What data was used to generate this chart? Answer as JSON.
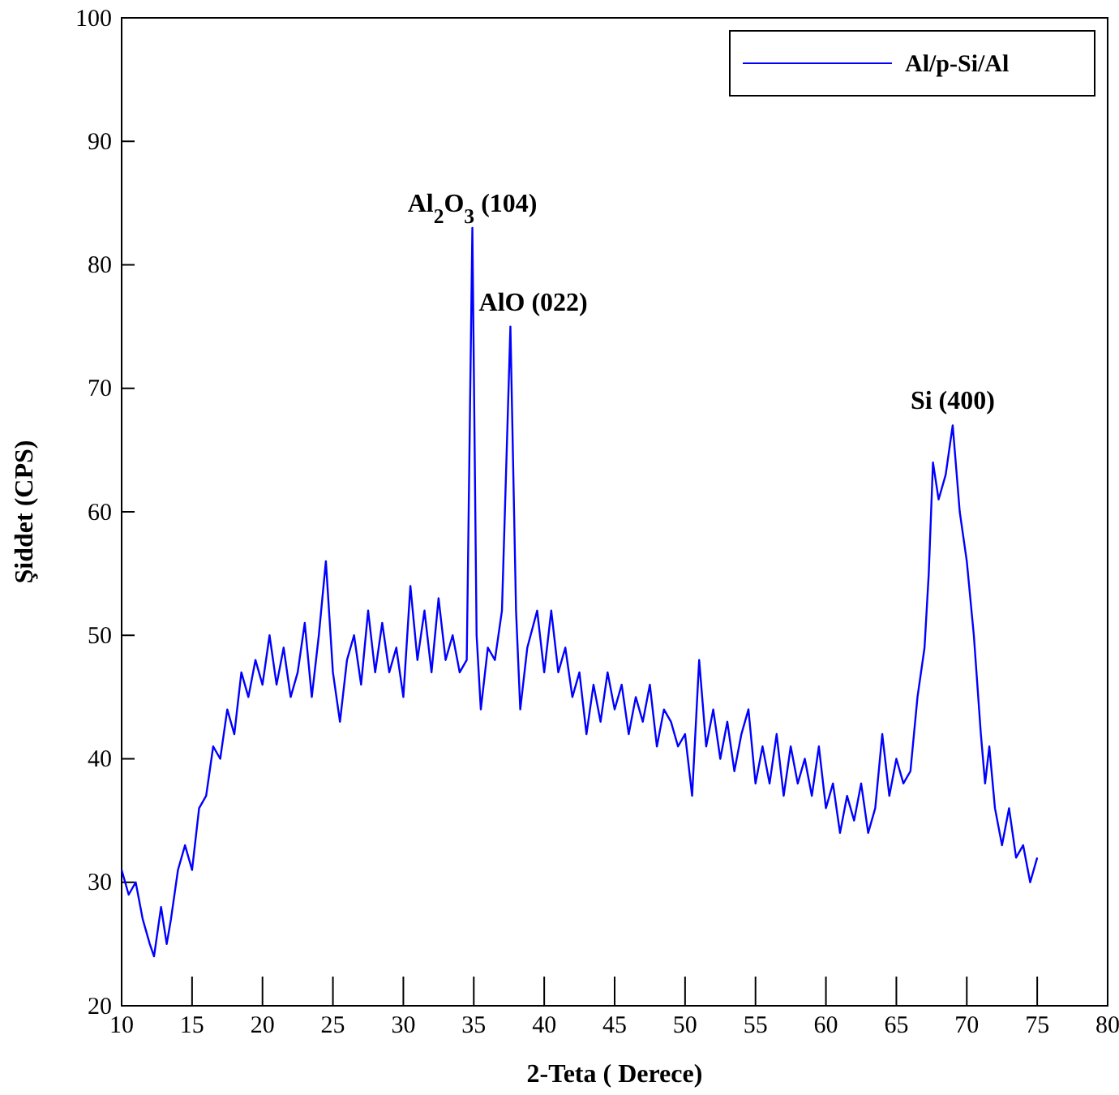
{
  "chart_data": {
    "type": "line",
    "xlabel": "2-Teta ( Derece)",
    "ylabel": "Şiddet (CPS)",
    "xlim": [
      10,
      80
    ],
    "xticks": [
      10,
      15,
      20,
      25,
      30,
      35,
      40,
      45,
      50,
      55,
      60,
      65,
      70,
      75,
      80
    ],
    "ylim": [
      20,
      100
    ],
    "yticks": [
      20,
      30,
      40,
      50,
      60,
      70,
      80,
      90,
      100
    ],
    "legend": "top right",
    "grid": false,
    "marker": "none",
    "line_style": "solid",
    "x": [
      10,
      10.5,
      11,
      11.5,
      12,
      12.3,
      12.8,
      13.2,
      13.5,
      14,
      14.5,
      15,
      15.5,
      16,
      16.5,
      17,
      17.5,
      18,
      18.5,
      19,
      19.5,
      20,
      20.5,
      21,
      21.5,
      22,
      22.5,
      23,
      23.5,
      24,
      24.5,
      25,
      25.5,
      26,
      26.5,
      27,
      27.5,
      28,
      28.5,
      29,
      29.5,
      30,
      30.5,
      31,
      31.5,
      32,
      32.5,
      33,
      33.5,
      34,
      34.5,
      34.9,
      35.2,
      35.5,
      36,
      36.5,
      37,
      37.6,
      38,
      38.3,
      38.8,
      39.5,
      40,
      40.5,
      41,
      41.5,
      42,
      42.5,
      43,
      43.5,
      44,
      44.5,
      45,
      45.5,
      46,
      46.5,
      47,
      47.5,
      48,
      48.5,
      49,
      49.5,
      50,
      50.5,
      51,
      51.5,
      52,
      52.5,
      53,
      53.5,
      54,
      54.5,
      55,
      55.5,
      56,
      56.5,
      57,
      57.5,
      58,
      58.5,
      59,
      59.5,
      60,
      60.5,
      61,
      61.5,
      62,
      62.5,
      63,
      63.5,
      64,
      64.5,
      65,
      65.5,
      66,
      66.5,
      67,
      67.3,
      67.6,
      68,
      68.5,
      69,
      69.5,
      70,
      70.5,
      71,
      71.3,
      71.6,
      72,
      72.5,
      73,
      73.5,
      74,
      74.5,
      75
    ],
    "series": [
      {
        "name": "Al/p-Si/Al",
        "color": "#0000ff",
        "values": [
          31,
          29,
          30,
          27,
          25,
          24,
          28,
          25,
          27,
          31,
          33,
          31,
          36,
          37,
          41,
          40,
          44,
          42,
          47,
          45,
          48,
          46,
          50,
          46,
          49,
          45,
          47,
          51,
          45,
          50,
          56,
          47,
          43,
          48,
          50,
          46,
          52,
          47,
          51,
          47,
          49,
          45,
          54,
          48,
          52,
          47,
          53,
          48,
          50,
          47,
          48,
          83,
          50,
          44,
          49,
          48,
          52,
          75,
          52,
          44,
          49,
          52,
          47,
          52,
          47,
          49,
          45,
          47,
          42,
          46,
          43,
          47,
          44,
          46,
          42,
          45,
          43,
          46,
          41,
          44,
          43,
          41,
          42,
          37,
          48,
          41,
          44,
          40,
          43,
          39,
          42,
          44,
          38,
          41,
          38,
          42,
          37,
          41,
          38,
          40,
          37,
          41,
          36,
          38,
          34,
          37,
          35,
          38,
          34,
          36,
          42,
          37,
          40,
          38,
          39,
          45,
          49,
          55,
          64,
          61,
          63,
          67,
          60,
          56,
          50,
          42,
          38,
          41,
          36,
          33,
          36,
          32,
          33,
          30,
          32
        ]
      }
    ],
    "annotations": [
      {
        "text": "Al$_{2}$O$_{3}$ (104)",
        "x": 34.9,
        "y": 83
      },
      {
        "text": "AlO (022)",
        "x": 37.6,
        "y": 75
      },
      {
        "text": "Si (400)",
        "x": 69,
        "y": 67
      }
    ]
  }
}
